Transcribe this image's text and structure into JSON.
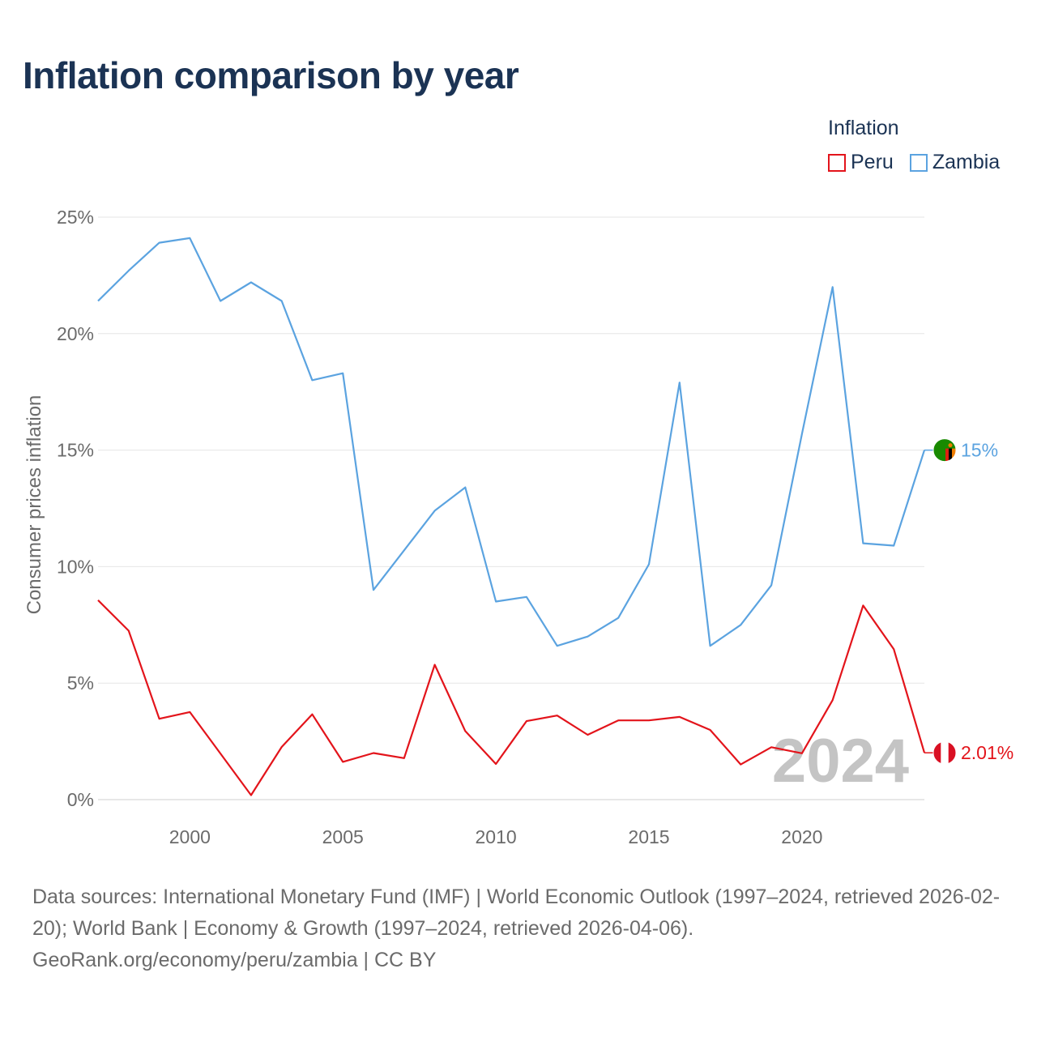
{
  "title": "Inflation comparison by year",
  "legend": {
    "title": "Inflation",
    "items": [
      {
        "label": "Peru",
        "color": "#e3141b"
      },
      {
        "label": "Zambia",
        "color": "#5ba3e0"
      }
    ]
  },
  "footer": {
    "line1": "Data sources: International Monetary Fund (IMF) | World Economic Outlook (1997–2024, retrieved 2026-02-20); World Bank | Economy & Growth (1997–2024, retrieved 2026-04-06).",
    "line2": "GeoRank.org/economy/peru/zambia | CC BY"
  },
  "chart_data": {
    "type": "line",
    "title": "Inflation comparison by year",
    "xlabel": "",
    "ylabel": "Consumer prices inflation",
    "xlim": [
      1997,
      2024
    ],
    "ylim": [
      0,
      25
    ],
    "x_ticks": [
      2000,
      2005,
      2010,
      2015,
      2020
    ],
    "y_ticks": [
      0,
      5,
      10,
      15,
      20,
      25
    ],
    "y_tick_labels": [
      "0%",
      "5%",
      "10%",
      "15%",
      "20%",
      "25%"
    ],
    "grid": true,
    "legend_position": "top-right",
    "year_label": "2024",
    "x": [
      1997,
      1998,
      1999,
      2000,
      2001,
      2002,
      2003,
      2004,
      2005,
      2006,
      2007,
      2008,
      2009,
      2010,
      2011,
      2012,
      2013,
      2014,
      2015,
      2016,
      2017,
      2018,
      2019,
      2020,
      2021,
      2022,
      2023,
      2024
    ],
    "series": [
      {
        "name": "Peru",
        "color": "#e3141b",
        "end_label": "2.01%",
        "flag": "peru-flag-icon",
        "values": [
          8.56,
          7.25,
          3.47,
          3.76,
          1.98,
          0.19,
          2.26,
          3.66,
          1.62,
          2.0,
          1.78,
          5.79,
          2.94,
          1.53,
          3.37,
          3.61,
          2.78,
          3.4,
          3.4,
          3.55,
          2.99,
          1.51,
          2.25,
          1.99,
          4.27,
          8.33,
          6.46,
          2.01
        ]
      },
      {
        "name": "Zambia",
        "color": "#5ba3e0",
        "end_label": "15%",
        "flag": "zambia-flag-icon",
        "values": [
          21.4,
          22.7,
          23.9,
          24.1,
          21.4,
          22.2,
          21.4,
          18.0,
          18.3,
          9.0,
          10.7,
          12.4,
          13.4,
          8.5,
          8.7,
          6.6,
          7.0,
          7.8,
          10.1,
          17.9,
          6.6,
          7.5,
          9.2,
          15.7,
          22.0,
          11.0,
          10.9,
          15.0
        ]
      }
    ]
  }
}
